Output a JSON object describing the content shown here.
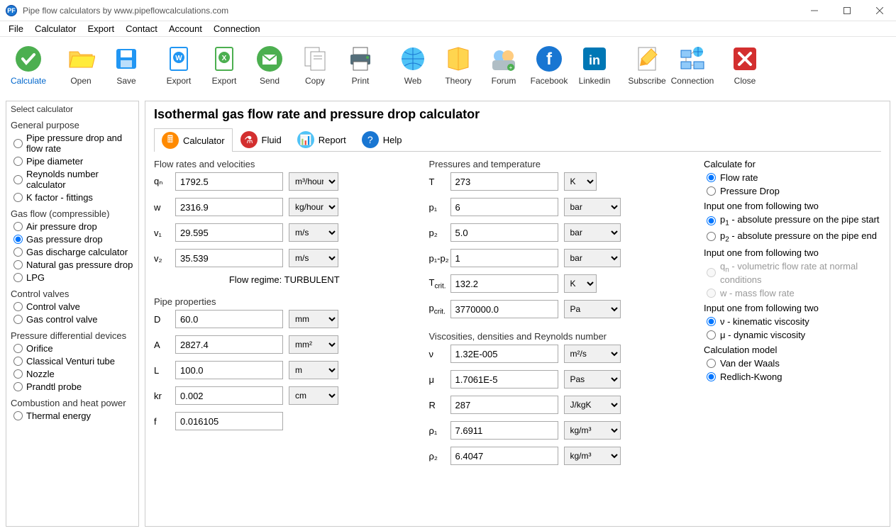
{
  "titlebar": {
    "icon_text": "PF",
    "title": "Pipe flow calculators by www.pipeflowcalculations.com"
  },
  "menubar": [
    "File",
    "Calculator",
    "Export",
    "Contact",
    "Account",
    "Connection"
  ],
  "toolbar": [
    {
      "label": "Calculate",
      "calc": true,
      "gap": true
    },
    {
      "label": "Open"
    },
    {
      "label": "Save",
      "gap": true
    },
    {
      "label": "Export"
    },
    {
      "label": "Export"
    },
    {
      "label": "Send"
    },
    {
      "label": "Copy"
    },
    {
      "label": "Print",
      "gap": true
    },
    {
      "label": "Web"
    },
    {
      "label": "Theory"
    },
    {
      "label": "Forum"
    },
    {
      "label": "Facebook"
    },
    {
      "label": "Linkedin",
      "gap": true
    },
    {
      "label": "Subscribe"
    },
    {
      "label": "Connection",
      "gap": true
    },
    {
      "label": "Close"
    }
  ],
  "sidebar": {
    "title": "Select calculator",
    "groups": [
      {
        "title": "General purpose",
        "options": [
          {
            "label": "Pipe pressure drop and flow rate"
          },
          {
            "label": "Pipe diameter"
          },
          {
            "label": "Reynolds number calculator"
          },
          {
            "label": "K factor - fittings"
          }
        ]
      },
      {
        "title": "Gas flow (compressible)",
        "options": [
          {
            "label": "Air pressure drop"
          },
          {
            "label": "Gas pressure drop",
            "checked": true
          },
          {
            "label": "Gas discharge calculator"
          },
          {
            "label": "Natural gas pressure drop"
          },
          {
            "label": "LPG"
          }
        ]
      },
      {
        "title": "Control valves",
        "options": [
          {
            "label": "Control valve"
          },
          {
            "label": "Gas control valve"
          }
        ]
      },
      {
        "title": "Pressure differential devices",
        "options": [
          {
            "label": "Orifice"
          },
          {
            "label": "Classical Venturi tube"
          },
          {
            "label": "Nozzle"
          },
          {
            "label": "Prandtl probe"
          }
        ]
      },
      {
        "title": "Combustion and heat power",
        "options": [
          {
            "label": "Thermal energy"
          }
        ]
      }
    ]
  },
  "content": {
    "heading": "Isothermal gas flow rate and pressure drop calculator",
    "subtabs": [
      {
        "label": "Calculator",
        "color": "#ff8a00",
        "active": true
      },
      {
        "label": "Fluid",
        "color": "#d32f2f"
      },
      {
        "label": "Report",
        "color": "#4fc3f7"
      },
      {
        "label": "Help",
        "color": "#1976d2"
      }
    ],
    "flow_section": "Flow rates and velocities",
    "qn_label": "qₙ",
    "qn_val": "1792.5",
    "qn_unit": "m³/hour",
    "w_label": "w",
    "w_val": "2316.9",
    "w_unit": "kg/hour",
    "v1_label": "v₁",
    "v1_val": "29.595",
    "v1_unit": "m/s",
    "v2_label": "v₂",
    "v2_val": "35.539",
    "v2_unit": "m/s",
    "flow_regime": "Flow regime: TURBULENT",
    "pipe_section": "Pipe properties",
    "D_label": "D",
    "D_val": "60.0",
    "D_unit": "mm",
    "A_label": "A",
    "A_val": "2827.4",
    "A_unit": "mm²",
    "L_label": "L",
    "L_val": "100.0",
    "L_unit": "m",
    "kr_label": "kr",
    "kr_val": "0.002",
    "kr_unit": "cm",
    "f_label": "f",
    "f_val": "0.016105",
    "press_section": "Pressures and temperature",
    "T_label": "T",
    "T_val": "273",
    "T_unit": "K",
    "p1_label": "p₁",
    "p1_val": "6",
    "p1_unit": "bar",
    "p2_label": "p₂",
    "p2_val": "5.0",
    "p2_unit": "bar",
    "dp_label": "p₁-p₂",
    "dp_val": "1",
    "dp_unit": "bar",
    "Tcrit_label": "Tcrit.",
    "Tcrit_val": "132.2",
    "Tcrit_unit": "K",
    "pcrit_label": "pcrit.",
    "pcrit_val": "3770000.0",
    "pcrit_unit": "Pa",
    "visc_section": "Viscosities, densities and Reynolds number",
    "nu_label": "ν",
    "nu_val": "1.32E-005",
    "nu_unit": "m²/s",
    "mu_label": "μ",
    "mu_val": "1.7061E-5",
    "mu_unit": "Pas",
    "R_label": "R",
    "R_val": "287",
    "R_unit": "J/kgK",
    "rho1_label": "ρ₁",
    "rho1_val": "7.6911",
    "rho1_unit": "kg/m³",
    "rho2_label": "ρ₂",
    "rho2_val": "6.4047",
    "rho2_unit": "kg/m³"
  },
  "right": {
    "calc_for": "Calculate for",
    "calc_for_opts": [
      {
        "label": "Flow rate",
        "checked": true
      },
      {
        "label": "Pressure Drop"
      }
    ],
    "input1_head": "Input one from following two",
    "input1_opts": [
      {
        "label_html": "p<sub>1</sub> - absolute pressure on the pipe start",
        "checked": true
      },
      {
        "label_html": "p<sub>2</sub> - absolute pressure on the pipe end"
      }
    ],
    "input2_head": "Input one from following two",
    "input2_opts": [
      {
        "label_html": "q<sub>n</sub> - volumetric flow rate at normal conditions",
        "disabled": true
      },
      {
        "label_html": "w - mass flow rate",
        "disabled": true
      }
    ],
    "input3_head": "Input one from following two",
    "input3_opts": [
      {
        "label": "ν - kinematic viscosity",
        "checked": true
      },
      {
        "label": "μ - dynamic viscosity"
      }
    ],
    "model_head": "Calculation model",
    "model_opts": [
      {
        "label": "Van der Waals"
      },
      {
        "label": "Redlich-Kwong",
        "checked": true
      }
    ]
  }
}
